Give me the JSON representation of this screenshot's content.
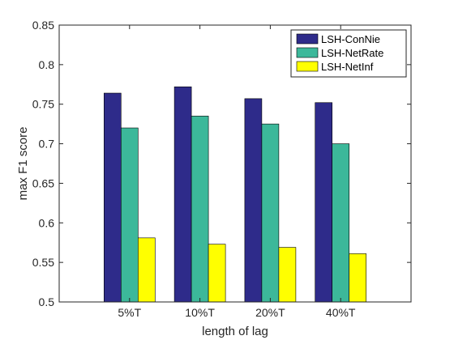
{
  "chart_data": {
    "type": "bar",
    "categories": [
      "5%T",
      "10%T",
      "20%T",
      "40%T"
    ],
    "series": [
      {
        "name": "LSH-ConNie",
        "values": [
          0.764,
          0.772,
          0.757,
          0.752
        ],
        "color": "#2e2b8a"
      },
      {
        "name": "LSH-NetRate",
        "values": [
          0.72,
          0.735,
          0.725,
          0.7
        ],
        "color": "#3cb89a"
      },
      {
        "name": "LSH-NetInf",
        "values": [
          0.581,
          0.573,
          0.569,
          0.561
        ],
        "color": "#ffff00"
      }
    ],
    "xlabel": "length of lag",
    "ylabel": "max F1 score",
    "ylim": [
      0.5,
      0.85
    ],
    "yticks": [
      "0.5",
      "0.55",
      "0.6",
      "0.65",
      "0.7",
      "0.75",
      "0.8",
      "0.85"
    ],
    "grid": false,
    "legend_position": "top-right"
  }
}
